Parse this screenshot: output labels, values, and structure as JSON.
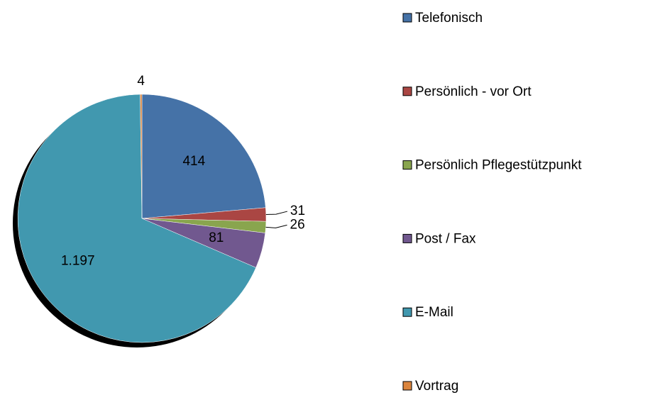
{
  "chart_data": {
    "type": "pie",
    "categories": [
      "Telefonisch",
      "Persönlich - vor Ort",
      "Persönlich Pflegestützpunkt",
      "Post / Fax",
      "E-Mail",
      "Vortrag"
    ],
    "values": [
      414,
      31,
      26,
      81,
      1197,
      4
    ],
    "value_labels": [
      "414",
      "31",
      "26",
      "81",
      "1.197",
      "4"
    ],
    "colors": [
      "#4572A7",
      "#AA4643",
      "#89A54E",
      "#71588F",
      "#4198AF",
      "#DB843D"
    ],
    "legend": "right"
  }
}
